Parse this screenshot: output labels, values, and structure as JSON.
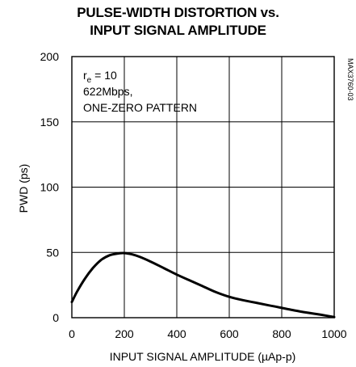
{
  "chart_data": {
    "type": "line",
    "title_line1": "PULSE-WIDTH DISTORTION vs.",
    "title_line2": "INPUT SIGNAL AMPLITUDE",
    "xlabel": "INPUT SIGNAL AMPLITUDE (µAp-p)",
    "ylabel": "PWD (ps)",
    "xlim": [
      0,
      1000
    ],
    "ylim": [
      0,
      200
    ],
    "xticks": [
      0,
      200,
      400,
      600,
      800,
      1000
    ],
    "yticks": [
      0,
      50,
      100,
      150,
      200
    ],
    "grid": true,
    "annotation": {
      "re_base": "r",
      "re_sub": "e",
      "re_rest": " = 10",
      "line2": "622Mbps,",
      "line3": "ONE-ZERO PATTERN"
    },
    "part_code": "MAX3760-03",
    "series": [
      {
        "x": [
          0,
          20,
          50,
          80,
          110,
          140,
          170,
          200,
          230,
          260,
          300,
          350,
          400,
          450,
          500,
          550,
          600,
          650,
          700,
          750,
          800,
          850,
          900,
          950,
          1000
        ],
        "y": [
          12,
          20,
          30,
          38,
          44,
          47.5,
          49,
          49.5,
          48.5,
          46.5,
          43,
          38,
          33,
          28.5,
          24,
          19.5,
          16,
          13.5,
          11.5,
          9.5,
          7.5,
          5.5,
          3.8,
          2.2,
          0.5
        ]
      }
    ]
  }
}
